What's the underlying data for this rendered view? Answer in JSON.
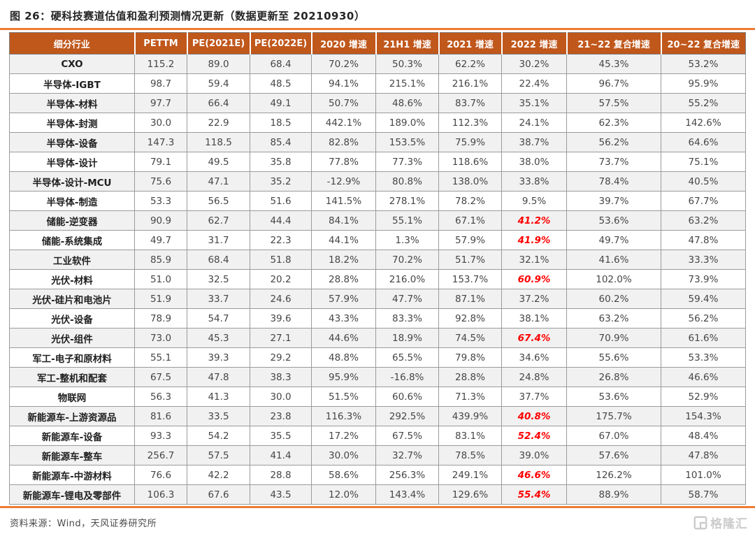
{
  "title": "图 26：硬科技赛道估值和盈利预测情况更新（数据更新至 20210930）",
  "colors": {
    "header_bg": "#C0571B",
    "accent_rule": "#ED7D31",
    "highlight_red": "#FF0000",
    "row_alt_bg": "#F1F1F1"
  },
  "table": {
    "headers": [
      "细分行业",
      "PETTM",
      "PE(2021E)",
      "PE(2022E)",
      "2020 增速",
      "21H1 增速",
      "2021 增速",
      "2022 增速",
      "21~22 复合增速",
      "20~22 复合增速"
    ],
    "rows": [
      {
        "name": "CXO",
        "values": [
          "115.2",
          "89.0",
          "68.4",
          "70.2%",
          "50.3%",
          "62.2%",
          "30.2%",
          "45.3%",
          "53.2%"
        ],
        "highlight": []
      },
      {
        "name": "半导体-IGBT",
        "values": [
          "98.7",
          "59.4",
          "48.5",
          "94.1%",
          "215.1%",
          "216.1%",
          "22.4%",
          "96.7%",
          "95.9%"
        ],
        "highlight": []
      },
      {
        "name": "半导体-材料",
        "values": [
          "97.7",
          "66.4",
          "49.1",
          "50.7%",
          "48.6%",
          "83.7%",
          "35.1%",
          "57.5%",
          "55.2%"
        ],
        "highlight": []
      },
      {
        "name": "半导体-封测",
        "values": [
          "30.0",
          "22.9",
          "18.5",
          "442.1%",
          "189.0%",
          "112.3%",
          "24.1%",
          "62.3%",
          "142.6%"
        ],
        "highlight": []
      },
      {
        "name": "半导体-设备",
        "values": [
          "147.3",
          "118.5",
          "85.4",
          "82.8%",
          "153.5%",
          "75.9%",
          "38.7%",
          "56.2%",
          "64.6%"
        ],
        "highlight": []
      },
      {
        "name": "半导体-设计",
        "values": [
          "79.1",
          "49.5",
          "35.8",
          "77.8%",
          "77.3%",
          "118.6%",
          "38.0%",
          "73.7%",
          "75.1%"
        ],
        "highlight": []
      },
      {
        "name": "半导体-设计-MCU",
        "values": [
          "75.6",
          "47.1",
          "35.2",
          "-12.9%",
          "80.8%",
          "138.0%",
          "33.8%",
          "78.4%",
          "40.5%"
        ],
        "highlight": []
      },
      {
        "name": "半导体-制造",
        "values": [
          "53.3",
          "56.5",
          "51.6",
          "141.5%",
          "278.1%",
          "78.2%",
          "9.5%",
          "39.7%",
          "67.7%"
        ],
        "highlight": []
      },
      {
        "name": "储能-逆变器",
        "values": [
          "90.9",
          "62.7",
          "44.4",
          "84.1%",
          "55.1%",
          "67.1%",
          "41.2%",
          "53.6%",
          "63.2%"
        ],
        "highlight": [
          6
        ]
      },
      {
        "name": "储能-系统集成",
        "values": [
          "49.7",
          "31.7",
          "22.3",
          "44.1%",
          "1.3%",
          "57.9%",
          "41.9%",
          "49.7%",
          "47.8%"
        ],
        "highlight": [
          6
        ]
      },
      {
        "name": "工业软件",
        "values": [
          "85.9",
          "68.4",
          "51.8",
          "18.2%",
          "70.2%",
          "51.7%",
          "32.1%",
          "41.6%",
          "33.3%"
        ],
        "highlight": []
      },
      {
        "name": "光伏-材料",
        "values": [
          "51.0",
          "32.5",
          "20.2",
          "28.8%",
          "216.0%",
          "153.7%",
          "60.9%",
          "102.0%",
          "73.9%"
        ],
        "highlight": [
          6
        ]
      },
      {
        "name": "光伏-硅片和电池片",
        "values": [
          "51.9",
          "33.7",
          "24.6",
          "57.9%",
          "47.7%",
          "87.1%",
          "37.2%",
          "60.2%",
          "59.4%"
        ],
        "highlight": []
      },
      {
        "name": "光伏-设备",
        "values": [
          "78.9",
          "54.7",
          "39.6",
          "43.3%",
          "83.3%",
          "92.8%",
          "38.1%",
          "63.2%",
          "56.2%"
        ],
        "highlight": []
      },
      {
        "name": "光伏-组件",
        "values": [
          "73.0",
          "45.3",
          "27.1",
          "44.6%",
          "18.9%",
          "74.5%",
          "67.4%",
          "70.9%",
          "61.6%"
        ],
        "highlight": [
          6
        ]
      },
      {
        "name": "军工-电子和原材料",
        "values": [
          "55.1",
          "39.3",
          "29.2",
          "48.8%",
          "65.5%",
          "79.8%",
          "34.6%",
          "55.6%",
          "53.3%"
        ],
        "highlight": []
      },
      {
        "name": "军工-整机和配套",
        "values": [
          "67.5",
          "47.8",
          "38.3",
          "95.9%",
          "-16.8%",
          "28.8%",
          "24.8%",
          "26.8%",
          "46.6%"
        ],
        "highlight": []
      },
      {
        "name": "物联网",
        "values": [
          "56.3",
          "41.3",
          "30.0",
          "51.5%",
          "60.6%",
          "71.3%",
          "37.7%",
          "53.6%",
          "52.9%"
        ],
        "highlight": []
      },
      {
        "name": "新能源车-上游资源品",
        "values": [
          "81.6",
          "33.5",
          "23.8",
          "116.3%",
          "292.5%",
          "439.9%",
          "40.8%",
          "175.7%",
          "154.3%"
        ],
        "highlight": [
          6
        ]
      },
      {
        "name": "新能源车-设备",
        "values": [
          "93.3",
          "54.2",
          "35.5",
          "17.2%",
          "67.5%",
          "83.1%",
          "52.4%",
          "67.0%",
          "48.4%"
        ],
        "highlight": [
          6
        ]
      },
      {
        "name": "新能源车-整车",
        "values": [
          "256.7",
          "57.5",
          "41.4",
          "30.0%",
          "32.7%",
          "78.5%",
          "39.0%",
          "57.6%",
          "47.8%"
        ],
        "highlight": []
      },
      {
        "name": "新能源车-中游材料",
        "values": [
          "76.6",
          "42.2",
          "28.8",
          "58.6%",
          "256.3%",
          "249.1%",
          "46.6%",
          "126.2%",
          "101.0%"
        ],
        "highlight": [
          6
        ]
      },
      {
        "name": "新能源车-锂电及零部件",
        "values": [
          "106.3",
          "67.6",
          "43.5",
          "12.0%",
          "143.4%",
          "129.6%",
          "55.4%",
          "88.9%",
          "58.7%"
        ],
        "highlight": [
          6
        ]
      }
    ]
  },
  "footer": {
    "source": "资料来源：Wind，天风证券研究所",
    "logo_text": "格隆汇"
  }
}
